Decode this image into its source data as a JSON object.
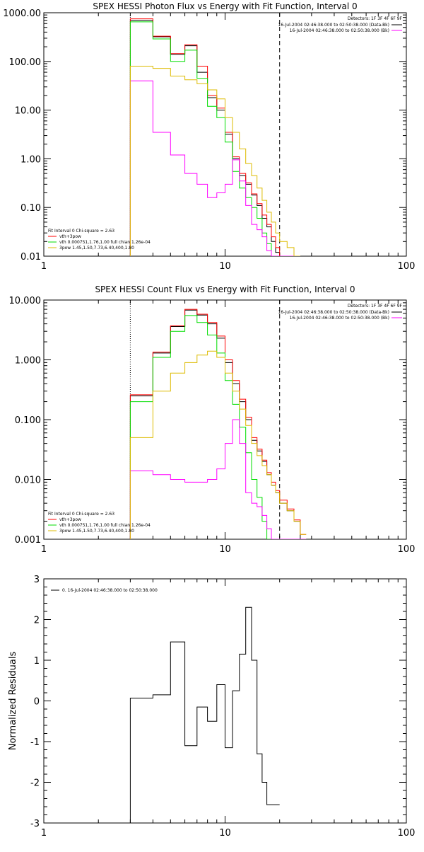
{
  "chart_data": [
    {
      "type": "line",
      "title": "SPEX HESSI Photon Flux vs Energy with Fit Function, Interval 0",
      "xlabel": "",
      "ylabel": "",
      "xscale": "log",
      "yscale": "log",
      "xlim": [
        1,
        100
      ],
      "ylim": [
        0.01,
        1000
      ],
      "xtick_labels": [
        "1",
        "10",
        "100"
      ],
      "ytick_labels": [
        "0.01",
        "0.10",
        "1.00",
        "10.00",
        "100.00",
        "1000.00"
      ],
      "grid": false,
      "dotted_line_x": 3,
      "dashed_line_x": 20,
      "bin_edges": [
        3,
        3.5,
        4,
        4.5,
        5,
        5.5,
        6,
        6.5,
        7,
        7.5,
        8,
        8.5,
        9,
        9.5,
        10,
        10.5,
        11,
        11.5,
        12,
        13,
        14,
        15,
        16,
        17,
        18,
        19,
        20,
        22,
        24,
        26
      ],
      "series": [
        {
          "color": "#000000",
          "values": [
            700,
            700,
            320,
            320,
            140,
            140,
            210,
            210,
            60,
            60,
            18,
            18,
            10,
            10,
            3.2,
            3.2,
            1.0,
            1.0,
            0.45,
            0.3,
            0.18,
            0.11,
            0.06,
            0.04,
            0.02,
            0.012,
            0.01,
            0.01,
            0.01
          ]
        },
        {
          "color": "#ff0000",
          "values": [
            750,
            750,
            330,
            330,
            145,
            145,
            220,
            220,
            80,
            80,
            20,
            20,
            11,
            11,
            3.5,
            3.5,
            1.1,
            1.1,
            0.5,
            0.32,
            0.19,
            0.12,
            0.07,
            0.045,
            0.025,
            0.015,
            0.01,
            0.01,
            0.01
          ]
        },
        {
          "color": "#00dd00",
          "values": [
            650,
            650,
            290,
            290,
            100,
            100,
            170,
            170,
            45,
            45,
            12,
            12,
            7,
            7,
            2.2,
            2.2,
            0.55,
            0.55,
            0.25,
            0.16,
            0.1,
            0.06,
            0.03,
            0.018,
            0.01,
            0.01,
            0.01,
            0.01,
            0.01
          ]
        },
        {
          "color": "#ff00ff",
          "values": [
            40,
            40,
            3.5,
            3.5,
            1.2,
            1.2,
            0.5,
            0.5,
            0.3,
            0.3,
            0.16,
            0.16,
            0.2,
            0.2,
            0.3,
            0.3,
            0.95,
            0.95,
            0.35,
            0.11,
            0.045,
            0.035,
            0.025,
            0.013,
            0.01,
            0.01,
            0.01,
            0.01,
            0.01
          ]
        },
        {
          "color": "#ddbb00",
          "values": [
            80,
            80,
            72,
            72,
            50,
            50,
            42,
            42,
            35,
            35,
            26,
            26,
            17,
            17,
            7,
            7,
            3.5,
            3.5,
            1.6,
            0.8,
            0.45,
            0.25,
            0.14,
            0.08,
            0.05,
            0.03,
            0.02,
            0.015,
            0.01
          ]
        }
      ],
      "legend_header": "Detectors: 1F 3F 4F 6F 9F",
      "legend_lines": [
        {
          "text": "16-Jul-2004 02:46:38.000 to 02:50:38.000 (Data-Bk)",
          "color": "#000000"
        },
        {
          "text": "16-Jul-2004 02:46:38.000 to 02:50:38.000 (Bk)",
          "color": "#ff00ff"
        }
      ],
      "fit_legend_header": "Fit Interval 0   Chi-square = 2.63",
      "fit_legend_lines": [
        {
          "text": "vth+3pow",
          "color": "#ff0000"
        },
        {
          "text": "vth 0.000751,1.76,1.00   full chian 1.26e-04",
          "color": "#00dd00"
        },
        {
          "text": "3pow 1.45,1.50,7.73,6.40,400,1.80",
          "color": "#ddbb00"
        }
      ]
    },
    {
      "type": "line",
      "title": "SPEX HESSI Count Flux vs Energy with Fit Function, Interval 0",
      "xlabel": "",
      "ylabel": "",
      "xscale": "log",
      "yscale": "log",
      "xlim": [
        1,
        100
      ],
      "ylim": [
        0.001,
        10
      ],
      "xtick_labels": [
        "1",
        "10",
        "100"
      ],
      "ytick_labels": [
        "0.001",
        "0.010",
        "0.100",
        "1.000",
        "10.000"
      ],
      "grid": false,
      "dotted_line_x": 3,
      "dashed_line_x": 20,
      "bin_edges": [
        3,
        3.5,
        4,
        4.5,
        5,
        5.5,
        6,
        6.5,
        7,
        7.5,
        8,
        8.5,
        9,
        9.5,
        10,
        10.5,
        11,
        11.5,
        12,
        13,
        14,
        15,
        16,
        17,
        18,
        19,
        20,
        22,
        24,
        26,
        28
      ],
      "series": [
        {
          "color": "#000000",
          "values": [
            0.25,
            0.25,
            1.3,
            1.3,
            3.6,
            3.6,
            6.8,
            6.8,
            5.6,
            5.6,
            4.0,
            4.0,
            2.3,
            2.3,
            0.9,
            0.9,
            0.4,
            0.4,
            0.2,
            0.1,
            0.045,
            0.03,
            0.02,
            0.012,
            0.008,
            0.006,
            0.004,
            0.003,
            0.002,
            0.001
          ]
        },
        {
          "color": "#ff0000",
          "values": [
            0.26,
            0.26,
            1.35,
            1.35,
            3.7,
            3.7,
            7.0,
            7.0,
            5.8,
            5.8,
            4.2,
            4.2,
            2.5,
            2.5,
            1.0,
            1.0,
            0.45,
            0.45,
            0.22,
            0.11,
            0.05,
            0.032,
            0.021,
            0.013,
            0.009,
            0.0065,
            0.0045,
            0.0032,
            0.0021,
            0.0012
          ]
        },
        {
          "color": "#00dd00",
          "values": [
            0.2,
            0.2,
            1.1,
            1.1,
            3.0,
            3.0,
            5.5,
            5.5,
            4.2,
            4.2,
            2.6,
            2.6,
            1.3,
            1.3,
            0.45,
            0.45,
            0.18,
            0.18,
            0.075,
            0.028,
            0.01,
            0.005,
            0.002,
            0.001,
            0.001,
            0.001,
            0.001,
            0.001,
            0.001,
            0.001
          ]
        },
        {
          "color": "#ff00ff",
          "values": [
            0.014,
            0.014,
            0.012,
            0.012,
            0.01,
            0.01,
            0.009,
            0.009,
            0.009,
            0.009,
            0.01,
            0.01,
            0.015,
            0.015,
            0.04,
            0.04,
            0.1,
            0.1,
            0.04,
            0.006,
            0.004,
            0.0035,
            0.0025,
            0.0015,
            0.001,
            0.001,
            0.001,
            0.001,
            0.001,
            0.001
          ]
        },
        {
          "color": "#ddbb00",
          "values": [
            0.05,
            0.05,
            0.3,
            0.3,
            0.6,
            0.6,
            0.9,
            0.9,
            1.2,
            1.2,
            1.4,
            1.4,
            1.1,
            1.1,
            0.6,
            0.6,
            0.3,
            0.3,
            0.15,
            0.08,
            0.04,
            0.025,
            0.017,
            0.012,
            0.008,
            0.006,
            0.004,
            0.003,
            0.002,
            0.0012
          ]
        }
      ],
      "legend_header": "Detectors: 1F 3F 4F 6F 9F",
      "legend_lines": [
        {
          "text": "16-Jul-2004 02:46:38.000 to 02:50:38.000 (Data-Bk)",
          "color": "#000000"
        },
        {
          "text": "16-Jul-2004 02:46:38.000 to 02:50:38.000 (Bk)",
          "color": "#ff00ff"
        }
      ],
      "fit_legend_header": "Fit Interval 0   Chi-square = 2.63",
      "fit_legend_lines": [
        {
          "text": "vth+3pow",
          "color": "#ff0000"
        },
        {
          "text": "vth 0.000751,1.76,1.00   full chian 1.26e-04",
          "color": "#00dd00"
        },
        {
          "text": "3pow 1.45,1.50,7.73,6.40,400,1.80",
          "color": "#ddbb00"
        }
      ]
    },
    {
      "type": "line",
      "title": "",
      "xlabel": "",
      "ylabel": "Normalized Residuals",
      "xscale": "log",
      "yscale": "linear",
      "xlim": [
        1,
        100
      ],
      "ylim": [
        -3,
        3
      ],
      "xtick_labels": [
        "1",
        "10",
        "100"
      ],
      "ytick_labels": [
        "-3",
        "-2",
        "-1",
        "0",
        "1",
        "2",
        "3"
      ],
      "grid": false,
      "bin_edges": [
        3,
        4,
        5,
        6,
        7,
        8,
        9,
        10,
        11,
        12,
        13,
        14,
        15,
        16,
        17,
        18,
        19,
        20
      ],
      "series": [
        {
          "color": "#000000",
          "values": [
            0.07,
            0.15,
            1.45,
            -1.1,
            -0.15,
            -0.5,
            0.4,
            -1.15,
            0.25,
            1.15,
            2.3,
            1.0,
            -1.3,
            -2.0,
            -2.55,
            -2.55,
            -2.55
          ]
        }
      ],
      "legend_lines": [
        {
          "text": "0. 16-Jul-2004 02:46:38.000 to 02:50:38.000",
          "color": "#000000"
        }
      ]
    }
  ]
}
